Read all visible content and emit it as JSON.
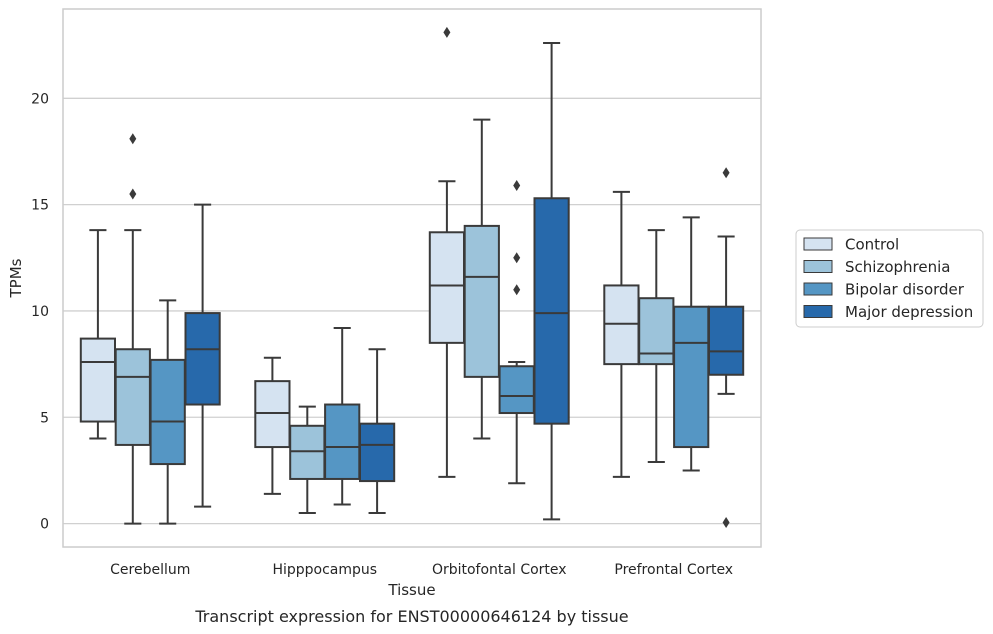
{
  "chart_data": {
    "type": "box",
    "title": "",
    "caption": "Transcript expression for ENST00000646124 by tissue",
    "xlabel": "Tissue",
    "ylabel": "TPMs",
    "ylim": [
      -1.1,
      24.2
    ],
    "yticks": [
      0,
      5,
      10,
      15,
      20
    ],
    "grid": true,
    "legend_position": "right",
    "categories": [
      "Cerebellum",
      "Hipppocampus",
      "Orbitofontal Cortex",
      "Prefrontal Cortex"
    ],
    "series": [
      {
        "name": "Control",
        "color": "#d5e3f1",
        "boxes": [
          {
            "whislo": 4.0,
            "q1": 4.8,
            "med": 7.6,
            "q3": 8.7,
            "whishi": 13.8,
            "fliers": []
          },
          {
            "whislo": 1.4,
            "q1": 3.6,
            "med": 5.2,
            "q3": 6.7,
            "whishi": 7.8,
            "fliers": []
          },
          {
            "whislo": 2.2,
            "q1": 8.5,
            "med": 11.2,
            "q3": 13.7,
            "whishi": 16.1,
            "fliers": [
              23.1
            ]
          },
          {
            "whislo": 2.2,
            "q1": 7.5,
            "med": 9.4,
            "q3": 11.2,
            "whishi": 15.6,
            "fliers": []
          }
        ]
      },
      {
        "name": "Schizophrenia",
        "color": "#9cc3da",
        "boxes": [
          {
            "whislo": 0.0,
            "q1": 3.7,
            "med": 6.9,
            "q3": 8.2,
            "whishi": 13.8,
            "fliers": [
              18.1,
              15.5
            ]
          },
          {
            "whislo": 0.5,
            "q1": 2.1,
            "med": 3.4,
            "q3": 4.6,
            "whishi": 5.5,
            "fliers": []
          },
          {
            "whislo": 4.0,
            "q1": 6.9,
            "med": 11.6,
            "q3": 14.0,
            "whishi": 19.0,
            "fliers": []
          },
          {
            "whislo": 2.9,
            "q1": 7.5,
            "med": 8.0,
            "q3": 10.6,
            "whishi": 13.8,
            "fliers": []
          }
        ]
      },
      {
        "name": "Bipolar disorder",
        "color": "#5596c4",
        "boxes": [
          {
            "whislo": 0.0,
            "q1": 2.8,
            "med": 4.8,
            "q3": 7.7,
            "whishi": 10.5,
            "fliers": []
          },
          {
            "whislo": 0.9,
            "q1": 2.1,
            "med": 3.6,
            "q3": 5.6,
            "whishi": 9.2,
            "fliers": []
          },
          {
            "whislo": 1.9,
            "q1": 5.2,
            "med": 6.0,
            "q3": 7.4,
            "whishi": 7.6,
            "fliers": [
              15.9,
              12.5,
              11.0
            ]
          },
          {
            "whislo": 2.5,
            "q1": 3.6,
            "med": 8.5,
            "q3": 10.2,
            "whishi": 14.4,
            "fliers": []
          }
        ]
      },
      {
        "name": "Major depression",
        "color": "#2769ab",
        "boxes": [
          {
            "whislo": 0.8,
            "q1": 5.6,
            "med": 8.2,
            "q3": 9.9,
            "whishi": 15.0,
            "fliers": []
          },
          {
            "whislo": 0.5,
            "q1": 2.0,
            "med": 3.7,
            "q3": 4.7,
            "whishi": 8.2,
            "fliers": []
          },
          {
            "whislo": 0.2,
            "q1": 4.7,
            "med": 9.9,
            "q3": 15.3,
            "whishi": 22.6,
            "fliers": []
          },
          {
            "whislo": 6.1,
            "q1": 7.0,
            "med": 8.1,
            "q3": 10.2,
            "whishi": 13.5,
            "fliers": [
              16.5,
              0.05
            ]
          }
        ]
      }
    ]
  }
}
